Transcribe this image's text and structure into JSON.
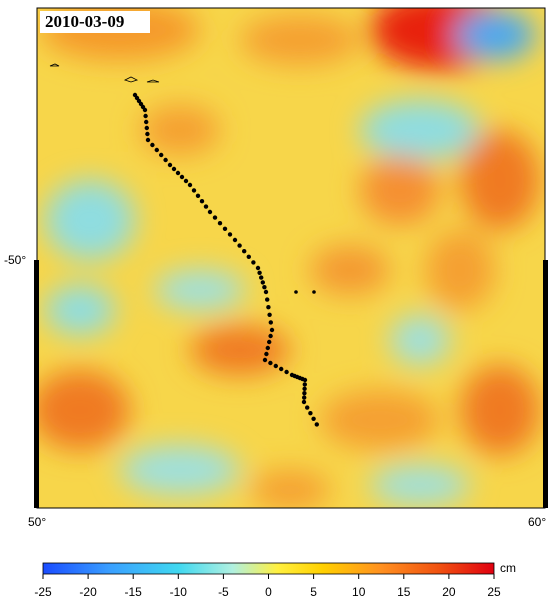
{
  "map": {
    "date": "2010-03-09",
    "labels": {
      "lat": "-50°",
      "lon_left": "50°",
      "lon_right": "60°"
    },
    "colorbar": {
      "unit": "cm",
      "lim": [
        -25,
        25
      ],
      "ticks": [
        -25,
        -20,
        -15,
        -10,
        -5,
        0,
        5,
        10,
        15,
        20,
        25
      ]
    }
  }
}
